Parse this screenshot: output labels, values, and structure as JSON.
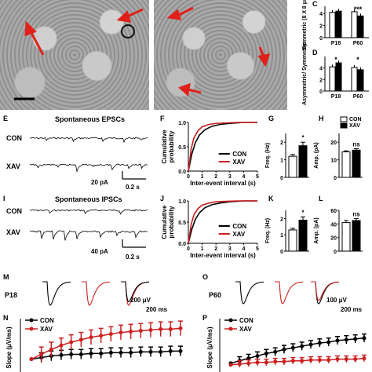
{
  "panels": {
    "C": "C",
    "D": "D",
    "E": "E",
    "F": "F",
    "G": "G",
    "H": "H",
    "I": "I",
    "J": "J",
    "K": "K",
    "L": "L",
    "M": "M",
    "N": "N",
    "O": "O",
    "P": "P"
  },
  "text": {
    "epsc_title": "Spontaneous EPSCs",
    "ipsc_title": "Spontaneous IPSCs",
    "con": "CON",
    "xav": "XAV",
    "e_scale_y": "20 pA",
    "e_scale_x": "0.2 s",
    "i_scale_y": "40 pA",
    "i_scale_x": "0.2 s",
    "m_age": "P18",
    "o_age": "P60",
    "m_scale_y": "200 μV",
    "m_scale_x": "200 ms",
    "o_scale_y": "100 μV",
    "o_scale_x": "200 ms"
  },
  "chart_data": [
    {
      "panel": "C",
      "type": "bar",
      "ylabel": "Symmetric (8 X 8 μm)",
      "categories": [
        "P18",
        "P60"
      ],
      "series": [
        {
          "name": "CON",
          "values": [
            4.2,
            4.3
          ]
        },
        {
          "name": "XAV",
          "values": [
            4.4,
            3.6
          ]
        }
      ],
      "yticks": [
        0,
        2,
        4
      ],
      "ylim": [
        0,
        5.2
      ],
      "annotations": [
        "",
        "***"
      ]
    },
    {
      "panel": "D",
      "type": "bar",
      "ylabel": "Asymmetric/ Symmetric",
      "categories": [
        "P18",
        "P60"
      ],
      "series": [
        {
          "name": "CON",
          "values": [
            4.2,
            4.1
          ]
        },
        {
          "name": "XAV",
          "values": [
            4.9,
            3.7
          ]
        }
      ],
      "yticks": [
        0,
        2,
        4
      ],
      "ylim": [
        0,
        6
      ],
      "annotations": [
        "*",
        "*"
      ]
    },
    {
      "panel": "F",
      "type": "line",
      "ylabel": "Cumulative probability",
      "xlabel": "Inter-event interval (s)",
      "xticks": [
        0,
        1,
        2,
        3,
        4,
        5
      ],
      "xlim": [
        0,
        5
      ],
      "yticks": [
        0,
        0.5,
        1.0
      ],
      "ylim": [
        0,
        1.0
      ],
      "series": [
        {
          "name": "CON",
          "x": [
            0,
            0.25,
            0.5,
            0.8,
            1.2,
            1.7,
            2.3,
            3.0,
            4.0,
            5.0
          ],
          "y": [
            0,
            0.35,
            0.58,
            0.74,
            0.85,
            0.92,
            0.96,
            0.98,
            1.0,
            1.0
          ]
        },
        {
          "name": "XAV",
          "x": [
            0,
            0.2,
            0.4,
            0.7,
            1.0,
            1.5,
            2.0,
            2.7,
            3.5,
            5.0
          ],
          "y": [
            0,
            0.45,
            0.68,
            0.83,
            0.91,
            0.96,
            0.98,
            0.99,
            1.0,
            1.0
          ]
        }
      ],
      "legend": "bottom-right"
    },
    {
      "panel": "G",
      "type": "bar",
      "ylabel": "Freq. (Hz)",
      "categories": [
        "CON",
        "XAV"
      ],
      "values": [
        1.2,
        1.8
      ],
      "errors": [
        0.1,
        0.2
      ],
      "yticks": [
        0,
        1,
        2
      ],
      "ylim": [
        0,
        2.5
      ],
      "annotations": [
        "",
        "*"
      ]
    },
    {
      "panel": "H",
      "type": "bar",
      "ylabel": "Amp. (pA)",
      "categories": [
        "CON",
        "XAV"
      ],
      "values": [
        14.5,
        15.5
      ],
      "errors": [
        0.6,
        0.8
      ],
      "yticks": [
        0,
        10,
        20
      ],
      "ylim": [
        0,
        25
      ],
      "annotations": [
        "",
        "ns"
      ],
      "legend": "top"
    },
    {
      "panel": "J",
      "type": "line",
      "ylabel": "Cumulative probability",
      "xlabel": "Inter-event interval (s)",
      "xticks": [
        0,
        1,
        2,
        3,
        4,
        5
      ],
      "xlim": [
        0,
        5
      ],
      "yticks": [
        0,
        0.5,
        1.0
      ],
      "ylim": [
        0,
        1.0
      ],
      "series": [
        {
          "name": "CON",
          "x": [
            0,
            0.25,
            0.5,
            0.8,
            1.2,
            1.7,
            2.3,
            3.0,
            4.0,
            5.0
          ],
          "y": [
            0,
            0.33,
            0.56,
            0.72,
            0.84,
            0.91,
            0.95,
            0.98,
            1.0,
            1.0
          ]
        },
        {
          "name": "XAV",
          "x": [
            0,
            0.2,
            0.4,
            0.7,
            1.0,
            1.5,
            2.0,
            2.7,
            3.5,
            5.0
          ],
          "y": [
            0,
            0.44,
            0.67,
            0.82,
            0.9,
            0.95,
            0.98,
            0.99,
            1.0,
            1.0
          ]
        }
      ],
      "legend": "bottom-right"
    },
    {
      "panel": "K",
      "type": "bar",
      "ylabel": "Freq. (Hz)",
      "categories": [
        "CON",
        "XAV"
      ],
      "values": [
        1.3,
        1.9
      ],
      "errors": [
        0.1,
        0.2
      ],
      "yticks": [
        0,
        1,
        2
      ],
      "ylim": [
        0,
        2.5
      ],
      "annotations": [
        "",
        "*"
      ]
    },
    {
      "panel": "L",
      "type": "bar",
      "ylabel": "Amp. (pA)",
      "categories": [
        "CON",
        "XAV"
      ],
      "values": [
        42,
        45
      ],
      "errors": [
        3,
        3
      ],
      "yticks": [
        0,
        20,
        40,
        60
      ],
      "ylim": [
        0,
        60
      ],
      "annotations": [
        "",
        "ns"
      ]
    },
    {
      "panel": "N",
      "type": "line",
      "ylabel": "Slope (μV/ms)",
      "series": [
        {
          "name": "CON",
          "values": [
            10,
            12,
            14,
            15,
            16,
            16,
            17,
            17,
            18,
            18,
            18,
            19,
            19,
            19,
            20,
            20
          ],
          "error": 6
        },
        {
          "name": "XAV",
          "values": [
            10,
            16,
            22,
            27,
            31,
            34,
            37,
            39,
            41,
            43,
            44,
            45,
            46,
            47,
            47,
            48
          ],
          "error": 9
        }
      ],
      "legend": "top-left"
    },
    {
      "panel": "P",
      "type": "line",
      "ylabel": "Slope (μV/ms)",
      "series": [
        {
          "name": "CON",
          "values": [
            5,
            8,
            11,
            14,
            17,
            19,
            22,
            24,
            26,
            28,
            30,
            31,
            33,
            34,
            35,
            36
          ],
          "error": 5
        },
        {
          "name": "XAV",
          "values": [
            3,
            4,
            5,
            6,
            6,
            7,
            7,
            8,
            8,
            9,
            9,
            9,
            10,
            10,
            10,
            11
          ],
          "error": 4
        }
      ],
      "legend": "top-left"
    }
  ],
  "colors": {
    "con": "#000000",
    "xav": "#cc1f1f",
    "arrow": "#e0201a",
    "bar_con": "#ffffff",
    "bar_xav": "#000000"
  }
}
